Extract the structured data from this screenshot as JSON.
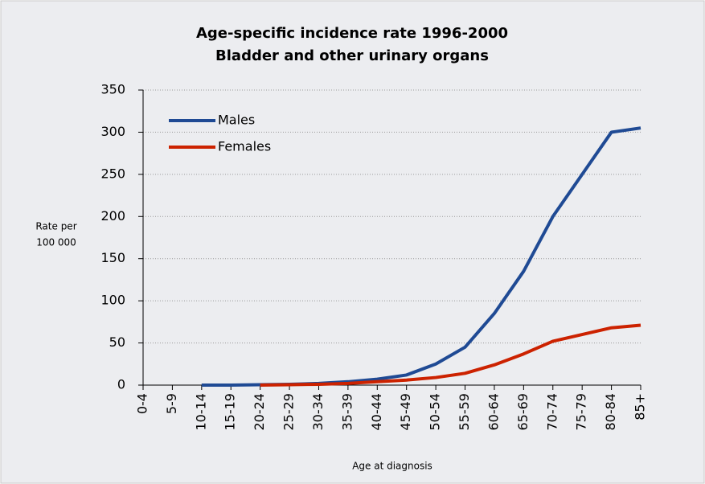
{
  "chart_data": {
    "type": "line",
    "title": [
      "Age-specific incidence rate 1996-2000",
      "Bladder and other urinary organs"
    ],
    "ylabel": [
      "Rate per",
      "100 000"
    ],
    "xlabel": "Age at diagnosis",
    "categories": [
      "0-4",
      "5-9",
      "10-14",
      "15-19",
      "20-24",
      "25-29",
      "30-34",
      "35-39",
      "40-44",
      "45-49",
      "50-54",
      "55-59",
      "60-64",
      "65-69",
      "70-74",
      "75-79",
      "80-84",
      "85+"
    ],
    "series": [
      {
        "name": "Males",
        "color": "#1f4a94",
        "values": [
          null,
          null,
          0,
          0,
          0.5,
          1,
          2,
          4,
          7,
          12,
          25,
          45,
          85,
          135,
          200,
          250,
          300,
          305
        ]
      },
      {
        "name": "Females",
        "color": "#cc2200",
        "values": [
          null,
          null,
          null,
          null,
          0,
          0.5,
          1,
          2,
          4,
          6,
          9,
          14,
          24,
          37,
          52,
          60,
          68,
          71
        ]
      }
    ],
    "ylim": [
      0,
      350
    ],
    "yticks": [
      0,
      50,
      100,
      150,
      200,
      250,
      300,
      350
    ],
    "grid": true,
    "legend": "upper left"
  }
}
